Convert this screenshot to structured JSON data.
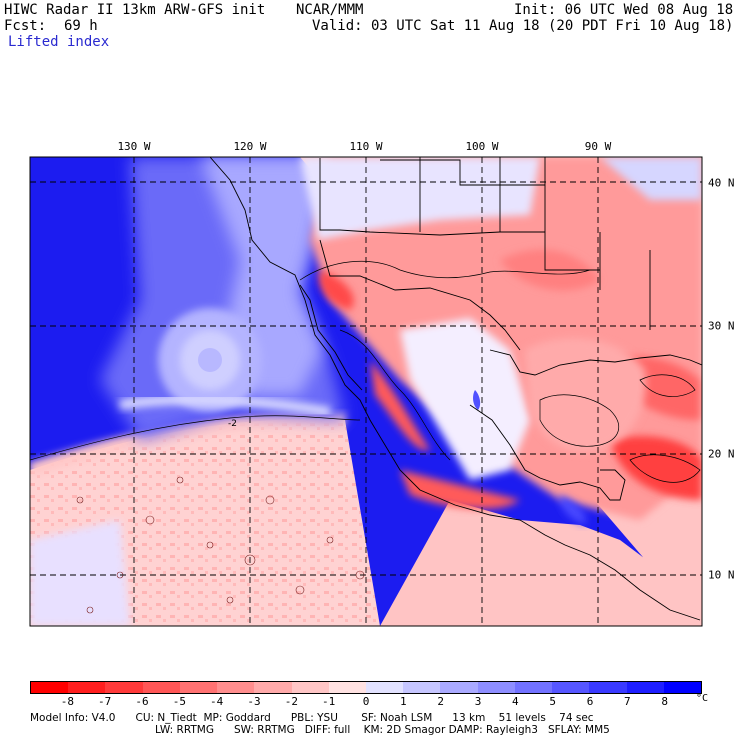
{
  "header": {
    "model": "HIWC Radar II 13km ARW-GFS init",
    "org": "NCAR/MMM",
    "init": "Init: 06 UTC Wed 08 Aug 18",
    "fcst_label": "Fcst:",
    "fcst_value": "69 h",
    "valid": "Valid: 03 UTC Sat 11 Aug 18 (20 PDT Fri 10 Aug 18)",
    "field": "Lifted index"
  },
  "map": {
    "lon_labels": [
      "130 W",
      "120 W",
      "110 W",
      "100 W",
      "90 W"
    ],
    "lat_labels": [
      "40 N",
      "30 N",
      "20 N",
      "10 N"
    ],
    "contour_label": "-2"
  },
  "colorbar": {
    "labels": [
      "-8",
      "-7",
      "-6",
      "-5",
      "-4",
      "-3",
      "-2",
      "-1",
      "0",
      "1",
      "2",
      "3",
      "4",
      "5",
      "6",
      "7",
      "8"
    ],
    "unit": "°C",
    "colors": [
      "#ff0000",
      "#ff1e1e",
      "#ff3a3a",
      "#ff5656",
      "#ff7272",
      "#ff8e8e",
      "#ffaaaa",
      "#ffc6c6",
      "#ffe2e2",
      "#e2e2ff",
      "#c6c6ff",
      "#aaaaff",
      "#8e8eff",
      "#7272ff",
      "#5656ff",
      "#3a3aff",
      "#1e1eff",
      "#0000ff"
    ]
  },
  "footer": {
    "line1": "Model Info: V4.0      CU: N_Tiedt  MP: Goddard      PBL: YSU       SF: Noah LSM      13 km    51 levels    74 sec",
    "line2": "LW: RRTMG      SW: RRTMG   DIFF: full    KM: 2D Smagor DAMP: Rayleigh3   SFLAY: MM5"
  }
}
